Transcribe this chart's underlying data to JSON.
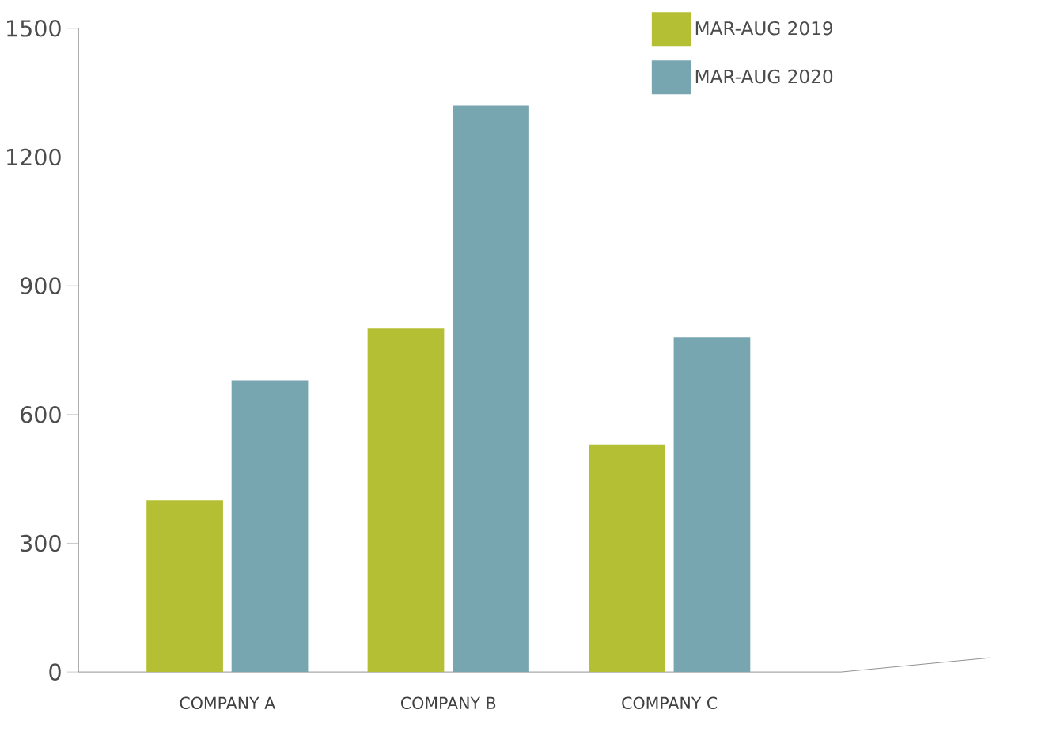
{
  "chart_data": {
    "type": "bar",
    "categories": [
      "COMPANY A",
      "COMPANY B",
      "COMPANY C"
    ],
    "series": [
      {
        "name": "MAR-AUG 2019",
        "color": "#b5bf33",
        "values": [
          400,
          800,
          530
        ]
      },
      {
        "name": "MAR-AUG 2020",
        "color": "#77a5b0",
        "values": [
          680,
          1320,
          780
        ]
      }
    ],
    "ylim": [
      0,
      1500
    ],
    "yticks": [
      0,
      300,
      600,
      900,
      1200,
      1500
    ],
    "grid": false,
    "legend": "top right"
  }
}
